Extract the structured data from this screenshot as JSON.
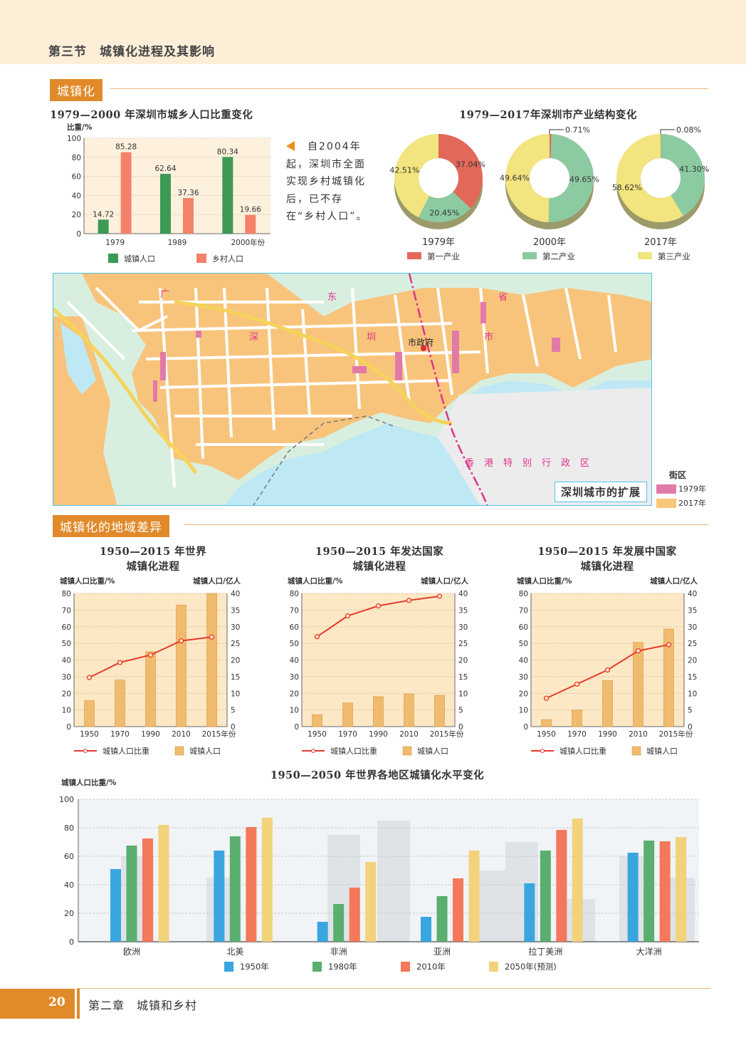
{
  "header": {
    "section_title": "第三节　城镇化进程及其影响"
  },
  "sections": {
    "urbanization": "城镇化",
    "regional_diff": "城镇化的地域差异"
  },
  "note": {
    "text": "自2004年起，深圳市全面实现乡村城镇化后，已不存在“乡村人口”。"
  },
  "map": {
    "title": "深圳城市的扩展",
    "labels": {
      "city_hall": "市政府",
      "hk": "香港特别行政区",
      "guangdong_shenzhen": [
        "广",
        "东",
        "省",
        "深",
        "圳",
        "市"
      ]
    },
    "legend_title": "街区",
    "legend": [
      {
        "label": "1979年",
        "color": "#e27aa8"
      },
      {
        "label": "2017年",
        "color": "#f9c77a"
      }
    ]
  },
  "footer": {
    "page_number": "20",
    "chapter": "第二章　城镇和乡村"
  },
  "chart_data": [
    {
      "id": "shenzhen-pop",
      "type": "bar",
      "title": "1979—2000 年深圳市城乡人口比重变化",
      "ylabel": "比重/%",
      "xlabel": "年份",
      "categories": [
        "1979",
        "1989",
        "2000"
      ],
      "x_suffix": "年份",
      "ylim": [
        0,
        100
      ],
      "yticks": [
        0,
        20,
        40,
        60,
        80,
        100
      ],
      "series": [
        {
          "name": "城镇人口",
          "values": [
            14.72,
            62.64,
            80.34
          ],
          "labels": [
            "14.72",
            "62.64",
            "80.34"
          ],
          "color": "#3c9a55"
        },
        {
          "name": "乡村人口",
          "values": [
            85.28,
            37.36,
            19.66
          ],
          "labels": [
            "85.28",
            "37.36",
            "19.66"
          ],
          "color": "#f4826a"
        }
      ],
      "legend": "bottom"
    },
    {
      "id": "shenzhen-industry",
      "type": "pie",
      "title": "1979—2017年深圳市产业结构变化",
      "categories": [
        "第一产业",
        "第二产业",
        "第三产业"
      ],
      "colors": [
        "#e2695a",
        "#8ccaa2",
        "#f2e47e"
      ],
      "pies": [
        {
          "name": "1979年",
          "values": [
            37.04,
            20.45,
            42.51
          ],
          "labels": [
            "37.04%",
            "20.45%",
            "42.51%"
          ]
        },
        {
          "name": "2000年",
          "values": [
            0.71,
            49.65,
            49.64
          ],
          "labels": [
            "0.71%",
            "49.65%",
            "49.64%"
          ]
        },
        {
          "name": "2017年",
          "values": [
            0.08,
            41.3,
            58.62
          ],
          "labels": [
            "0.08%",
            "41.30%",
            "58.62%"
          ]
        }
      ],
      "legend": "bottom"
    },
    {
      "id": "world-urban",
      "type": "bar",
      "title": "1950—2015 年世界",
      "title2": "城镇化进程",
      "ylabel": "城镇人口比重/%",
      "y2label": "城镇人口/亿人",
      "categories": [
        "1950",
        "1970",
        "1990",
        "2010",
        "2015"
      ],
      "x_suffix": "年份",
      "ylim": [
        0,
        80
      ],
      "y2lim": [
        0,
        40
      ],
      "yticks": [
        0,
        10,
        20,
        30,
        40,
        50,
        60,
        70,
        80
      ],
      "y2ticks": [
        0,
        5,
        10,
        15,
        20,
        25,
        30,
        35,
        40
      ],
      "line": {
        "name": "城镇人口比重",
        "values": [
          29.5,
          38.5,
          43,
          51.5,
          53.8
        ]
      },
      "bars": {
        "name": "城镇人口",
        "values": [
          7.8,
          14,
          22.5,
          36.5,
          40
        ]
      }
    },
    {
      "id": "developed-urban",
      "type": "bar",
      "title": "1950—2015 年发达国家",
      "title2": "城镇化进程",
      "ylabel": "城镇人口比重/%",
      "y2label": "城镇人口/亿人",
      "categories": [
        "1950",
        "1970",
        "1990",
        "2010",
        "2015"
      ],
      "x_suffix": "年份",
      "ylim": [
        0,
        80
      ],
      "y2lim": [
        0,
        40
      ],
      "yticks": [
        0,
        10,
        20,
        30,
        40,
        50,
        60,
        70,
        80
      ],
      "y2ticks": [
        0,
        5,
        10,
        15,
        20,
        25,
        30,
        35,
        40
      ],
      "line": {
        "name": "城镇人口比重",
        "values": [
          54,
          66.5,
          72.5,
          75.8,
          78.3
        ]
      },
      "bars": {
        "name": "城镇人口",
        "values": [
          3.6,
          7.1,
          9,
          9.8,
          9.4
        ]
      }
    },
    {
      "id": "developing-urban",
      "type": "bar",
      "title": "1950—2015 年发展中国家",
      "title2": "城镇化进程",
      "ylabel": "城镇人口比重/%",
      "y2label": "城镇人口/亿人",
      "categories": [
        "1950",
        "1970",
        "1990",
        "2010",
        "2015"
      ],
      "x_suffix": "年份",
      "ylim": [
        0,
        80
      ],
      "y2lim": [
        0,
        40
      ],
      "yticks": [
        0,
        10,
        20,
        30,
        40,
        50,
        60,
        70,
        80
      ],
      "y2ticks": [
        0,
        5,
        10,
        15,
        20,
        25,
        30,
        35,
        40
      ],
      "line": {
        "name": "城镇人口比重",
        "values": [
          17,
          25.5,
          34,
          45.5,
          49.2
        ]
      },
      "bars": {
        "name": "城镇人口",
        "values": [
          2.1,
          5,
          13.8,
          25.3,
          29.3
        ]
      }
    },
    {
      "id": "regions-urban",
      "type": "bar",
      "title": "1950—2050 年世界各地区城镇化水平变化",
      "ylabel": "城镇人口比重/%",
      "categories": [
        "欧洲",
        "北美",
        "非洲",
        "亚洲",
        "拉丁美洲",
        "大洋洲"
      ],
      "ylim": [
        0,
        100
      ],
      "yticks": [
        0,
        20,
        40,
        60,
        80,
        100
      ],
      "series": [
        {
          "name": "1950年",
          "values": [
            51,
            64,
            14,
            17.5,
            41,
            62.5
          ],
          "color": "#3aa6e0"
        },
        {
          "name": "1980年",
          "values": [
            67.5,
            74,
            26.5,
            32,
            64,
            71
          ],
          "color": "#5aae6e"
        },
        {
          "name": "2010年",
          "values": [
            72.5,
            80.5,
            38,
            44.5,
            78.5,
            70.5
          ],
          "color": "#f4785a"
        },
        {
          "name": "2050年(预测)",
          "values": [
            82,
            87,
            56,
            64,
            86.5,
            73.5
          ],
          "color": "#f3d27c"
        }
      ],
      "legend": "bottom"
    }
  ]
}
